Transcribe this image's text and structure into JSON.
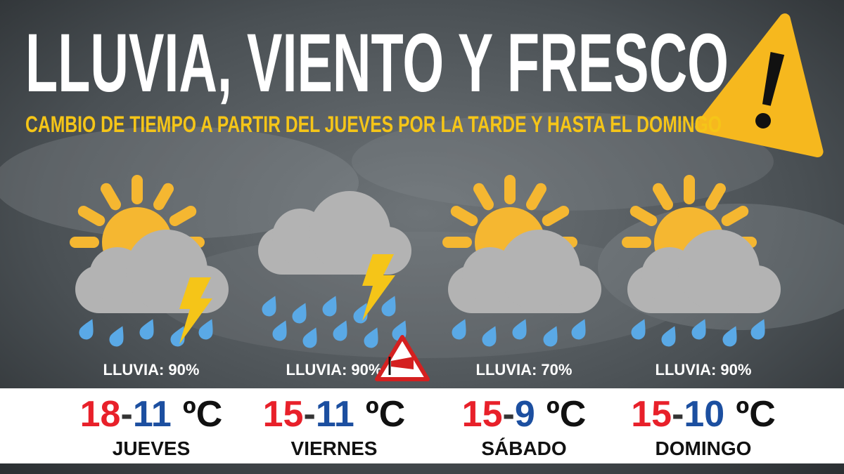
{
  "header": {
    "title": "LLUVIA, VIENTO Y FRESCO",
    "subtitle": "CAMBIO DE TIEMPO A PARTIR DEL JUEVES POR LA TARDE Y HASTA EL DOMINGO"
  },
  "temperature_separator": "-",
  "temperature_unit": "ºC",
  "days": [
    {
      "rain": "LLUVIA: 90%",
      "high": 18,
      "low": 11,
      "day": "JUEVES",
      "sun": true,
      "lightning": true,
      "wind_warning": false
    },
    {
      "rain": "LLUVIA: 90%",
      "high": 15,
      "low": 11,
      "day": "VIERNES",
      "sun": false,
      "lightning": true,
      "wind_warning": true
    },
    {
      "rain": "LLUVIA: 70%",
      "high": 15,
      "low": 9,
      "day": "SÁBADO",
      "sun": true,
      "lightning": false,
      "wind_warning": false
    },
    {
      "rain": "LLUVIA: 90%",
      "high": 15,
      "low": 10,
      "day": "DOMINGO",
      "sun": true,
      "lightning": false,
      "wind_warning": false
    }
  ]
}
